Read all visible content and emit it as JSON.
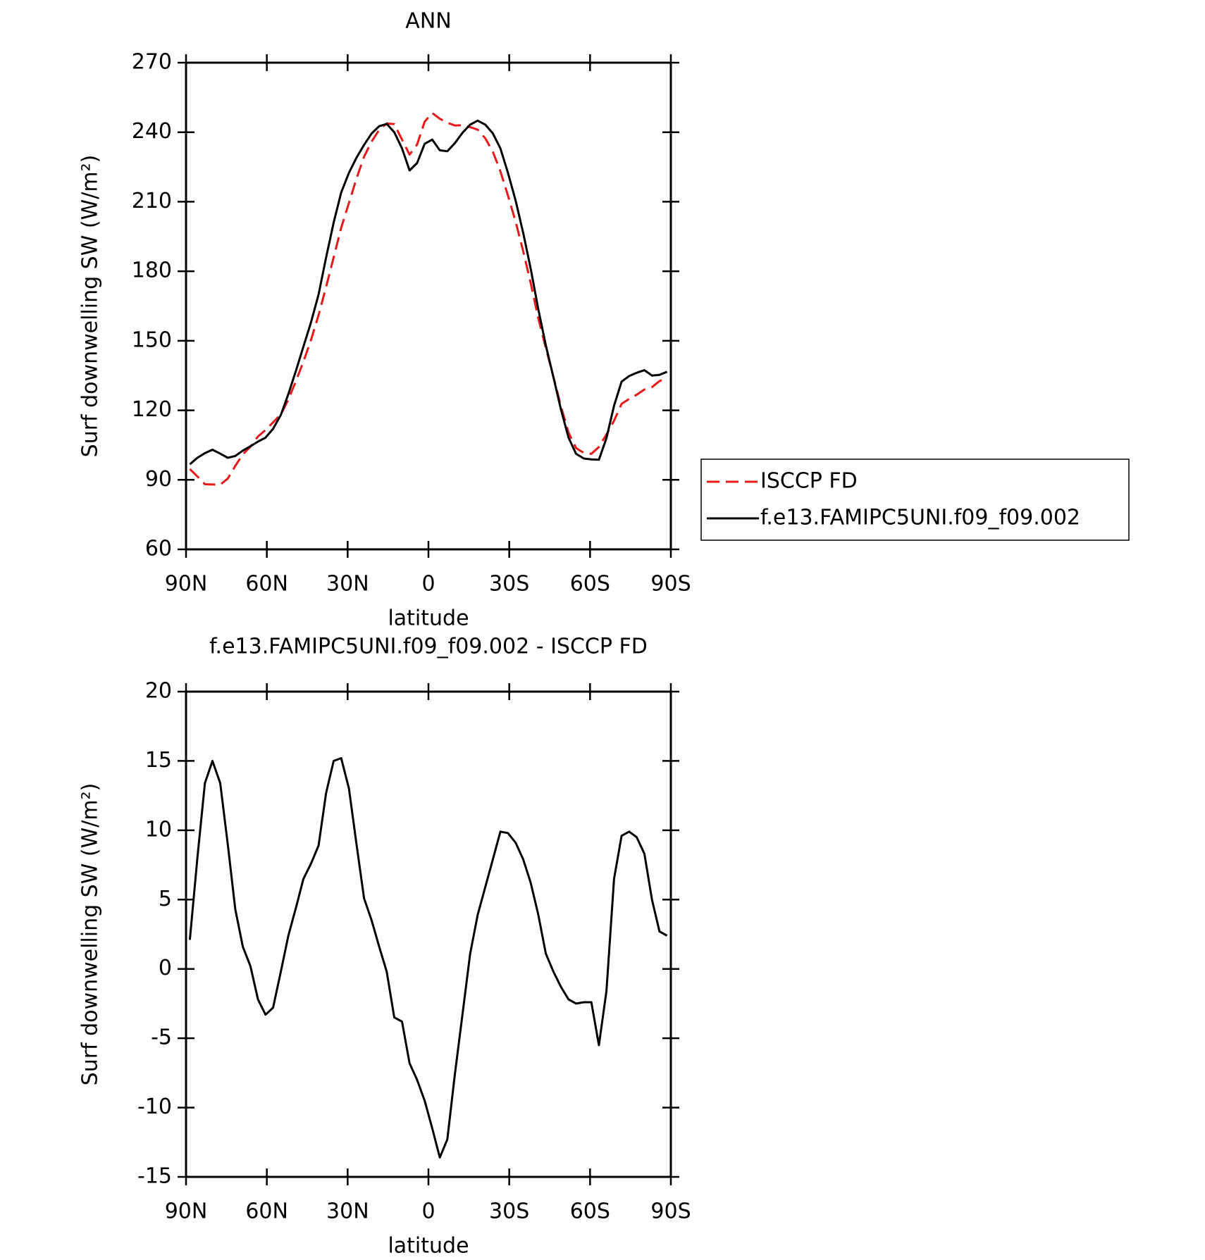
{
  "chart_data": [
    {
      "type": "line",
      "title": "ANN",
      "xlabel": "latitude",
      "ylabel": "Surf downwelling SW (W/m²)",
      "x": [
        88.6,
        85.8,
        83.0,
        80.2,
        77.3,
        74.5,
        71.7,
        68.9,
        66.1,
        63.3,
        60.5,
        57.7,
        54.8,
        52.0,
        49.2,
        46.4,
        43.6,
        40.8,
        38.0,
        35.2,
        32.4,
        29.5,
        26.7,
        23.9,
        21.1,
        18.3,
        15.5,
        12.7,
        9.8,
        7.0,
        4.2,
        1.4,
        -1.4,
        -4.2,
        -7.0,
        -9.8,
        -12.7,
        -15.5,
        -18.3,
        -21.1,
        -23.9,
        -26.7,
        -29.5,
        -32.4,
        -35.2,
        -38.0,
        -40.8,
        -43.6,
        -46.4,
        -49.2,
        -52.0,
        -54.8,
        -57.7,
        -60.5,
        -63.3,
        -66.1,
        -68.9,
        -71.7,
        -74.5,
        -77.3,
        -80.2,
        -83.0,
        -85.8,
        -88.6
      ],
      "series": [
        {
          "name": "ISCCP FD",
          "color": "#e8191b",
          "linestyle": "dashed",
          "values": [
            94.6,
            91.5,
            88.1,
            88.0,
            87.9,
            90.5,
            96.0,
            101.0,
            104.3,
            108.7,
            111.5,
            114.8,
            118.2,
            124.6,
            132.6,
            141.0,
            150.4,
            161.1,
            173.3,
            186.0,
            198.8,
            209.5,
            220.0,
            229.4,
            236.0,
            241.0,
            243.8,
            243.5,
            236.8,
            230.3,
            234.7,
            244.5,
            248.3,
            245.8,
            244.1,
            242.9,
            243.0,
            242.2,
            241.1,
            237.4,
            231.6,
            223.1,
            212.7,
            201.3,
            188.6,
            174.8,
            159.7,
            146.9,
            134.4,
            121.6,
            110.4,
            103.7,
            101.6,
            101.2,
            104.2,
            109.6,
            115.5,
            122.8,
            124.9,
            126.7,
            129.0,
            130.0,
            132.6,
            134.2
          ]
        },
        {
          "name": "f.e13.FAMIPC5UNI.f09_f09.002",
          "color": "#000000",
          "linestyle": "solid",
          "values": [
            96.7,
            99.5,
            101.5,
            103.0,
            101.3,
            99.5,
            100.3,
            102.6,
            104.5,
            106.5,
            108.2,
            112.0,
            118.0,
            127.0,
            137.0,
            147.5,
            158.0,
            170.0,
            186.0,
            201.0,
            214.0,
            222.5,
            229.0,
            234.5,
            239.5,
            242.6,
            243.6,
            240.0,
            233.0,
            223.5,
            226.7,
            235.0,
            236.8,
            232.2,
            231.8,
            235.3,
            239.8,
            243.3,
            245.0,
            243.3,
            239.5,
            233.0,
            222.5,
            210.4,
            196.5,
            181.0,
            163.6,
            148.0,
            134.2,
            120.3,
            108.2,
            101.2,
            99.2,
            98.8,
            98.7,
            108.0,
            122.0,
            132.4,
            134.8,
            136.2,
            137.3,
            135.0,
            135.3,
            136.6
          ]
        }
      ],
      "xlim": [
        90,
        -90
      ],
      "xticks": [
        {
          "value": 90,
          "label": "90N"
        },
        {
          "value": 60,
          "label": "60N"
        },
        {
          "value": 30,
          "label": "30N"
        },
        0,
        {
          "value": -30,
          "label": "30S"
        },
        {
          "value": -60,
          "label": "60S"
        },
        {
          "value": -90,
          "label": "90S"
        }
      ],
      "ylim": [
        60,
        270
      ],
      "yticks": [
        60,
        90,
        120,
        150,
        180,
        210,
        240,
        270
      ],
      "legend": "right"
    },
    {
      "type": "line",
      "title": "f.e13.FAMIPC5UNI.f09_f09.002 - ISCCP FD",
      "xlabel": "latitude",
      "ylabel": "Surf downwelling SW (W/m²)",
      "x": [
        88.6,
        85.8,
        83.0,
        80.2,
        77.3,
        74.5,
        71.7,
        68.9,
        66.1,
        63.3,
        60.5,
        57.7,
        54.8,
        52.0,
        49.2,
        46.4,
        43.6,
        40.8,
        38.0,
        35.2,
        32.4,
        29.5,
        26.7,
        23.9,
        21.1,
        18.3,
        15.5,
        12.7,
        9.8,
        7.0,
        4.2,
        1.4,
        -1.4,
        -4.2,
        -7.0,
        -9.8,
        -12.7,
        -15.5,
        -18.3,
        -21.1,
        -23.9,
        -26.7,
        -29.5,
        -32.4,
        -35.2,
        -38.0,
        -40.8,
        -43.6,
        -46.4,
        -49.2,
        -52.0,
        -54.8,
        -57.7,
        -60.5,
        -63.3,
        -66.1,
        -68.9,
        -71.7,
        -74.5,
        -77.3,
        -80.2,
        -83.0,
        -85.8,
        -88.6
      ],
      "series": [
        {
          "color": "#000000",
          "linestyle": "solid",
          "values": [
            2.1,
            8.0,
            13.4,
            15.0,
            13.4,
            9.0,
            4.3,
            1.6,
            0.2,
            -2.2,
            -3.3,
            -2.8,
            -0.2,
            2.4,
            4.4,
            6.5,
            7.6,
            8.9,
            12.7,
            15.0,
            15.2,
            13.0,
            9.0,
            5.1,
            3.5,
            1.6,
            -0.2,
            -3.5,
            -3.8,
            -6.8,
            -8.0,
            -9.5,
            -11.5,
            -13.6,
            -12.3,
            -7.6,
            -3.2,
            1.1,
            3.9,
            5.9,
            7.9,
            9.9,
            9.8,
            9.1,
            7.9,
            6.2,
            3.9,
            1.1,
            -0.2,
            -1.3,
            -2.2,
            -2.5,
            -2.4,
            -2.4,
            -5.5,
            -1.6,
            6.5,
            9.6,
            9.9,
            9.5,
            8.3,
            5.0,
            2.7,
            2.4
          ]
        }
      ],
      "xlim": [
        90,
        -90
      ],
      "xticks": [
        {
          "value": 90,
          "label": "90N"
        },
        {
          "value": 60,
          "label": "60N"
        },
        {
          "value": 30,
          "label": "30N"
        },
        0,
        {
          "value": -30,
          "label": "30S"
        },
        {
          "value": -60,
          "label": "60S"
        },
        {
          "value": -90,
          "label": "90S"
        }
      ],
      "ylim": [
        -15,
        20
      ],
      "yticks": [
        -15,
        -10,
        -5,
        0,
        5,
        10,
        15,
        20
      ]
    }
  ]
}
